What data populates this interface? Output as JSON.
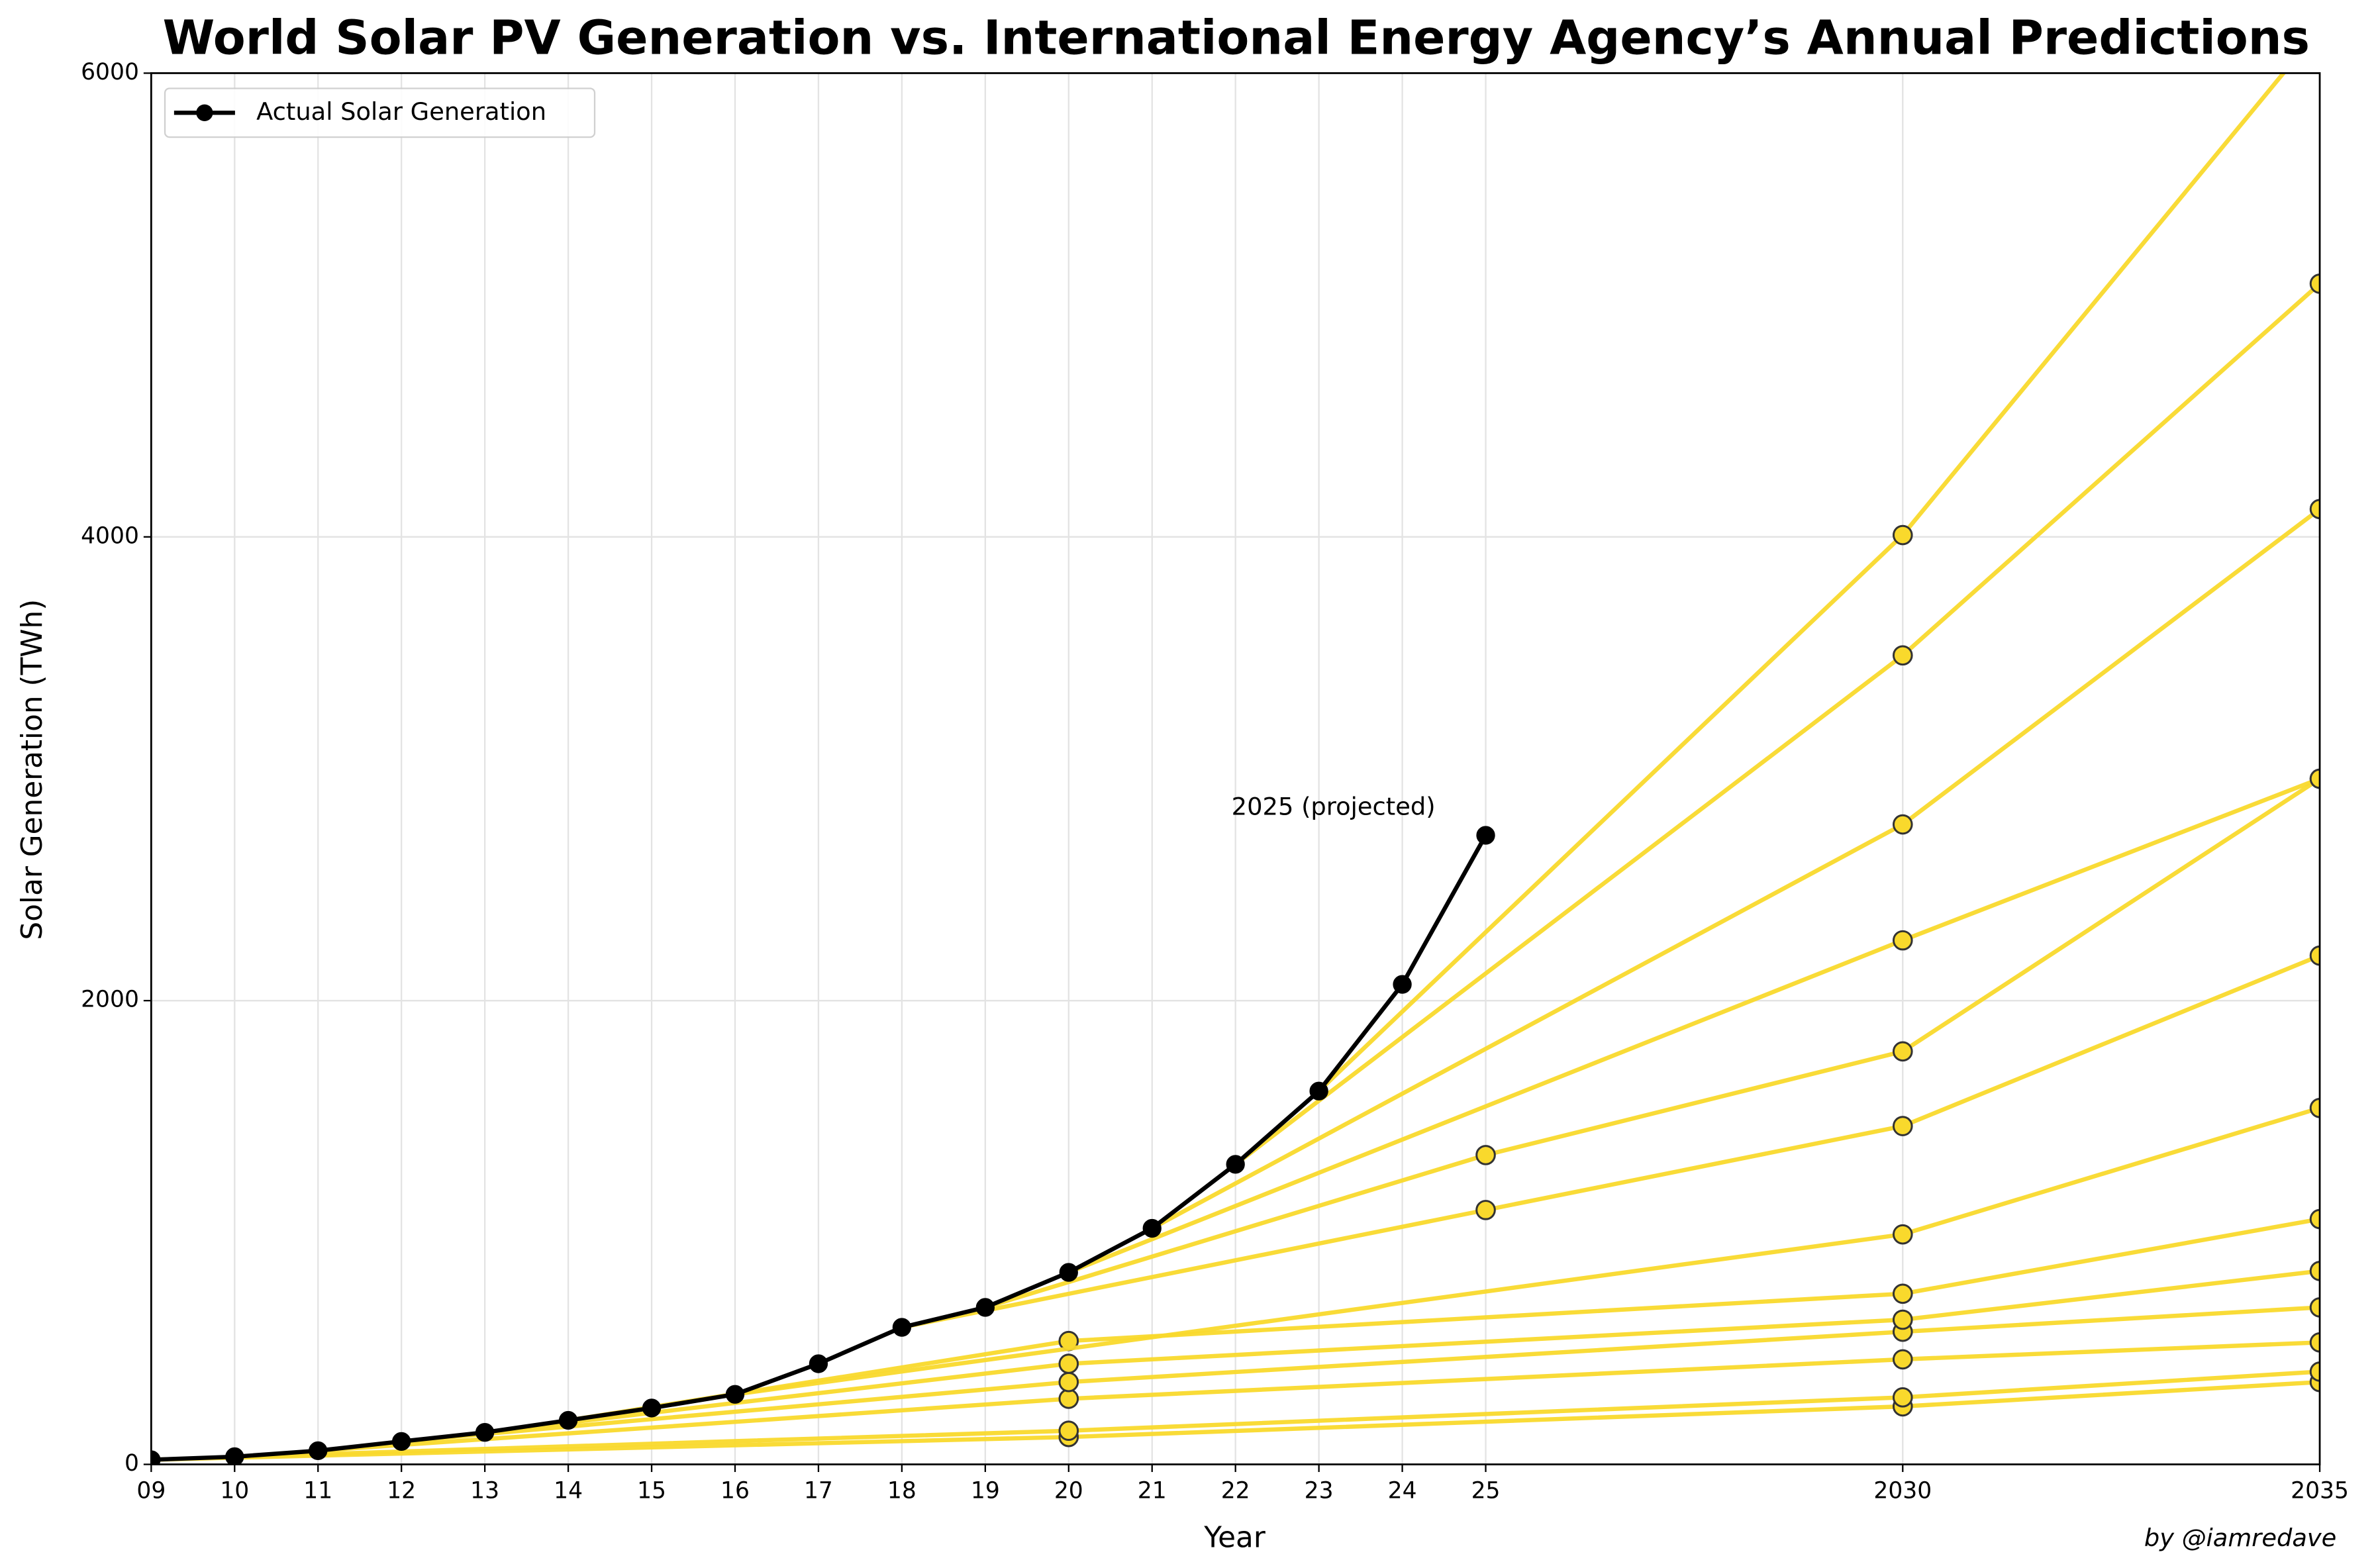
{
  "chart_data": {
    "type": "line",
    "title": "World Solar PV Generation vs. International Energy Agency’s Annual Predictions",
    "xlabel": "Year",
    "ylabel": "Solar Generation (TWh)",
    "annotation": "2025 (projected)",
    "credit": "by @iamredave",
    "xlim": [
      2009,
      2035
    ],
    "ylim": [
      0,
      6000
    ],
    "xticks": [
      {
        "value": 2009,
        "label": "09"
      },
      {
        "value": 2010,
        "label": "10"
      },
      {
        "value": 2011,
        "label": "11"
      },
      {
        "value": 2012,
        "label": "12"
      },
      {
        "value": 2013,
        "label": "13"
      },
      {
        "value": 2014,
        "label": "14"
      },
      {
        "value": 2015,
        "label": "15"
      },
      {
        "value": 2016,
        "label": "16"
      },
      {
        "value": 2017,
        "label": "17"
      },
      {
        "value": 2018,
        "label": "18"
      },
      {
        "value": 2019,
        "label": "19"
      },
      {
        "value": 2020,
        "label": "20"
      },
      {
        "value": 2021,
        "label": "21"
      },
      {
        "value": 2022,
        "label": "22"
      },
      {
        "value": 2023,
        "label": "23"
      },
      {
        "value": 2024,
        "label": "24"
      },
      {
        "value": 2025,
        "label": "25"
      },
      2030,
      2035
    ],
    "yticks": [
      0,
      2000,
      4000,
      6000
    ],
    "grid": true,
    "legend": "upper left",
    "series": [
      {
        "name": "Actual Solar Generation",
        "color": "#000000",
        "x": [
          2009,
          2010,
          2011,
          2012,
          2013,
          2014,
          2015,
          2016,
          2017,
          2018,
          2019,
          2020,
          2021,
          2022,
          2023,
          2024,
          2025
        ],
        "values": [
          20,
          33,
          59,
          99,
          138,
          190,
          243,
          302,
          434,
          591,
          677,
          828,
          1018,
          1294,
          1610,
          2070,
          2713
        ]
      },
      {
        "color": "#f9d92c",
        "x": [
          2009,
          2020,
          2030,
          2035
        ],
        "values": [
          20,
          118,
          250,
          355
        ]
      },
      {
        "color": "#f9d92c",
        "x": [
          2010,
          2020,
          2030,
          2035
        ],
        "values": [
          33,
          145,
          289,
          400
        ]
      },
      {
        "color": "#f9d92c",
        "x": [
          2011,
          2020,
          2030,
          2035
        ],
        "values": [
          59,
          283,
          453,
          526
        ]
      },
      {
        "color": "#f9d92c",
        "x": [
          2012,
          2020,
          2030,
          2035
        ],
        "values": [
          99,
          355,
          572,
          677
        ]
      },
      {
        "color": "#f9d92c",
        "x": [
          2013,
          2020,
          2030,
          2035
        ],
        "values": [
          138,
          434,
          624,
          834
        ]
      },
      {
        "color": "#f9d92c",
        "x": [
          2014,
          2020,
          2030,
          2035
        ],
        "values": [
          190,
          532,
          736,
          1058
        ]
      },
      {
        "color": "#f9d92c",
        "x": [
          2016,
          2030,
          2035
        ],
        "values": [
          302,
          992,
          1537
        ]
      },
      {
        "color": "#f9d92c",
        "x": [
          2018,
          2025,
          2030,
          2035
        ],
        "values": [
          591,
          1097,
          1459,
          2194
        ]
      },
      {
        "color": "#f9d92c",
        "x": [
          2019,
          2025,
          2030,
          2035
        ],
        "values": [
          677,
          1334,
          1781,
          2957
        ]
      },
      {
        "color": "#f9d92c",
        "x": [
          2020,
          2030,
          2035
        ],
        "values": [
          828,
          2260,
          2957
        ]
      },
      {
        "color": "#f9d92c",
        "x": [
          2021,
          2030,
          2035
        ],
        "values": [
          1018,
          2760,
          4120
        ]
      },
      {
        "color": "#f9d92c",
        "x": [
          2022,
          2030,
          2035
        ],
        "values": [
          1294,
          3489,
          5092
        ]
      },
      {
        "color": "#f9d92c",
        "x": [
          2023,
          2030,
          2035
        ],
        "values": [
          1610,
          4008,
          6190
        ]
      }
    ]
  }
}
